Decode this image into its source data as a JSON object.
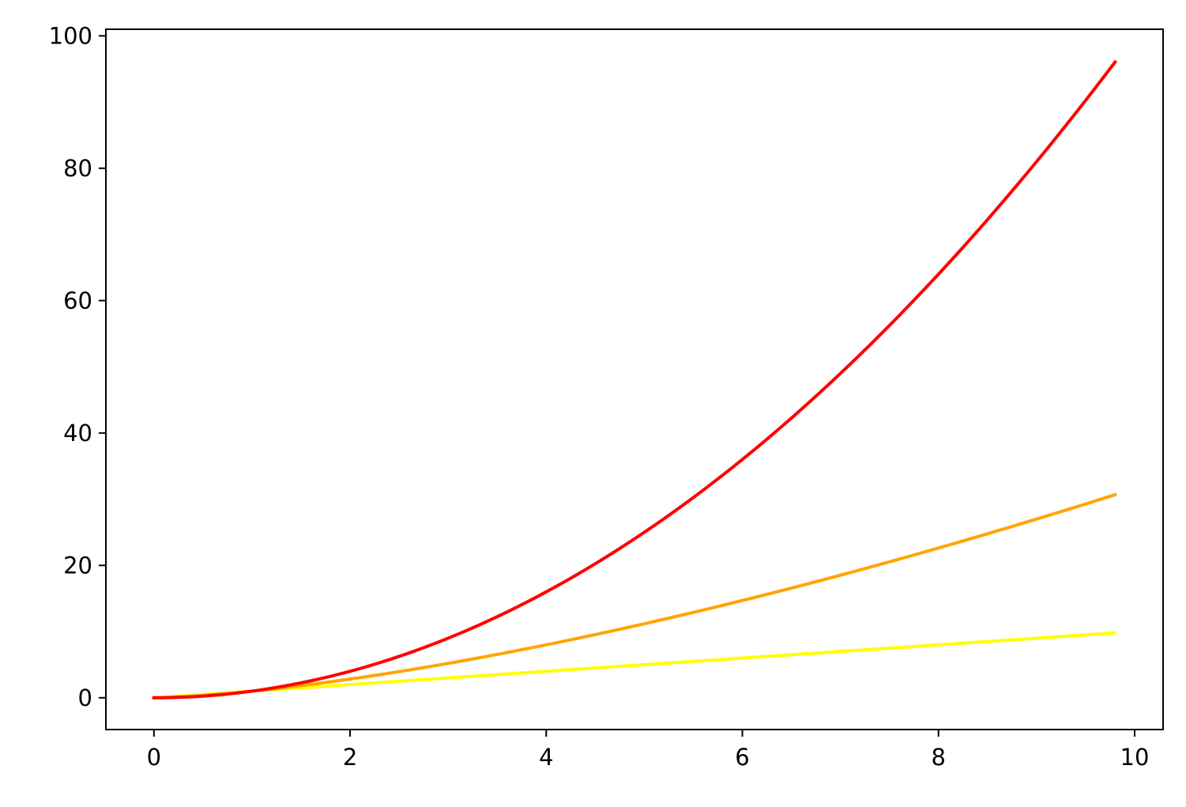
{
  "chart_data": {
    "type": "line",
    "title": "",
    "xlabel": "",
    "ylabel": "",
    "xlim": [
      -0.49,
      10.29
    ],
    "ylim": [
      -4.8,
      101.0
    ],
    "xticks": [
      0,
      2,
      4,
      6,
      8,
      10
    ],
    "yticks": [
      0,
      20,
      40,
      60,
      80,
      100
    ],
    "xtick_labels": [
      "0",
      "2",
      "4",
      "6",
      "8",
      "10"
    ],
    "ytick_labels": [
      "0",
      "20",
      "40",
      "60",
      "80",
      "100"
    ],
    "grid": false,
    "legend": "none",
    "x": {
      "start": 0,
      "stop": 9.8,
      "step": 0.1
    },
    "series": [
      {
        "power": 1,
        "color": "#ffff00"
      },
      {
        "power": 1.5,
        "color": "#ffa500"
      },
      {
        "power": 2,
        "color": "#ff0000"
      }
    ]
  }
}
